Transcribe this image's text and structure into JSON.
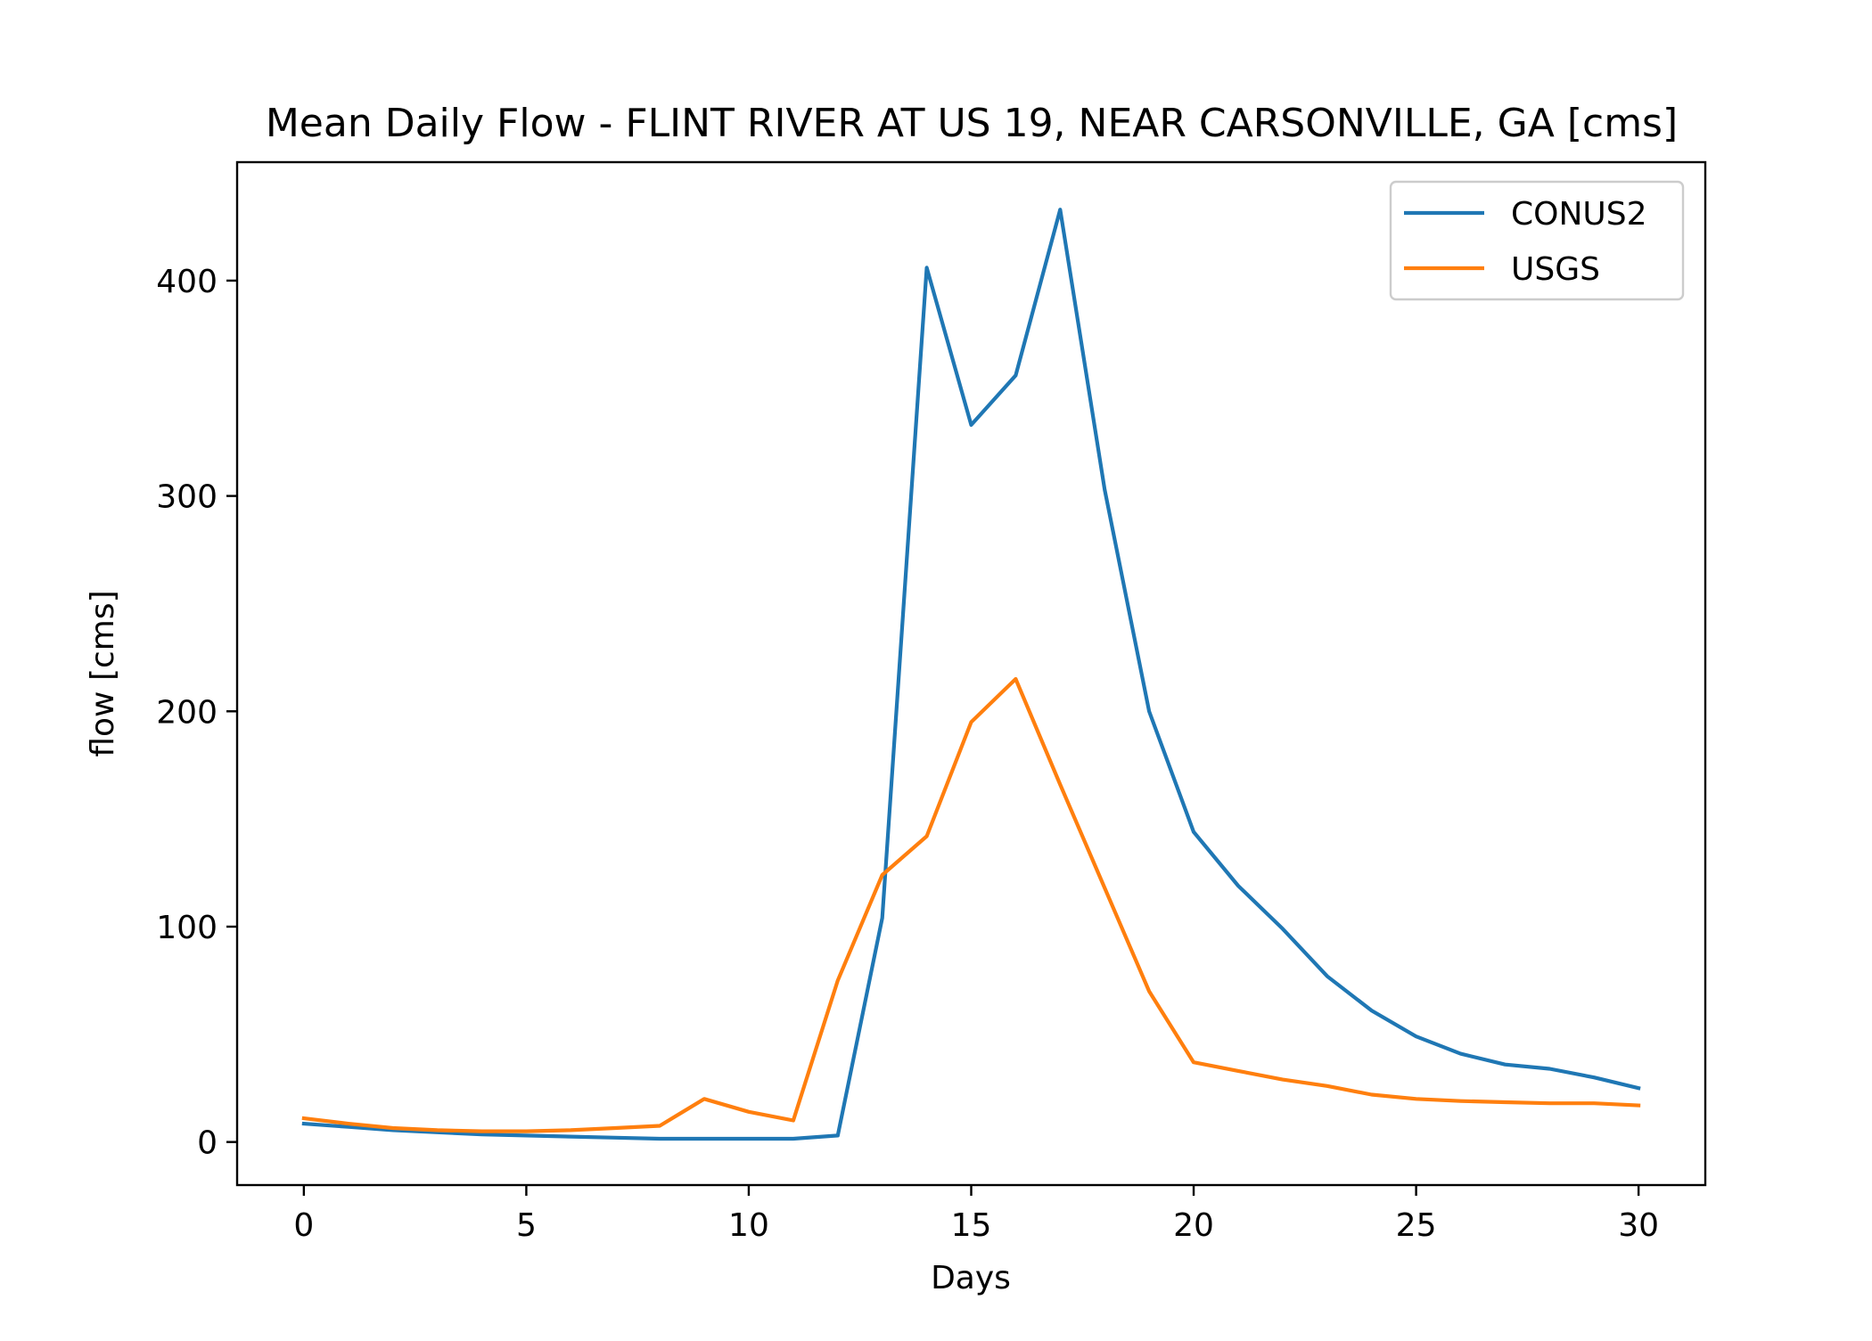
{
  "chart_data": {
    "type": "line",
    "title": "Mean Daily Flow - FLINT RIVER AT US 19, NEAR CARSONVILLE, GA [cms]",
    "xlabel": "Days",
    "ylabel": "flow [cms]",
    "xlim": [
      -1.5,
      31.5
    ],
    "ylim": [
      -20,
      455
    ],
    "xticks": [
      0,
      5,
      10,
      15,
      20,
      25,
      30
    ],
    "yticks": [
      0,
      100,
      200,
      300,
      400
    ],
    "grid": false,
    "legend_position": "top-right",
    "x": [
      0,
      1,
      2,
      3,
      4,
      5,
      6,
      7,
      8,
      9,
      10,
      11,
      12,
      13,
      14,
      15,
      16,
      17,
      18,
      19,
      20,
      21,
      22,
      23,
      24,
      25,
      26,
      27,
      28,
      29,
      30
    ],
    "series": [
      {
        "name": "CONUS2",
        "color": "#1f77b4",
        "values": [
          8.5,
          7,
          5.5,
          4.5,
          3.5,
          3,
          2.5,
          2,
          1.5,
          1.5,
          1.5,
          1.5,
          3,
          104,
          406,
          333,
          356,
          433,
          303,
          200,
          144,
          119,
          99,
          77,
          61,
          49,
          41,
          36,
          34,
          30,
          25
        ]
      },
      {
        "name": "USGS",
        "color": "#ff7f0e",
        "values": [
          11,
          8.5,
          6.5,
          5.5,
          5,
          5,
          5.5,
          6.5,
          7.5,
          20,
          14,
          10,
          75,
          124,
          142,
          195,
          215,
          166,
          118,
          70,
          37,
          33,
          29,
          26,
          22,
          20,
          19,
          18.5,
          18,
          18,
          17
        ]
      }
    ]
  }
}
